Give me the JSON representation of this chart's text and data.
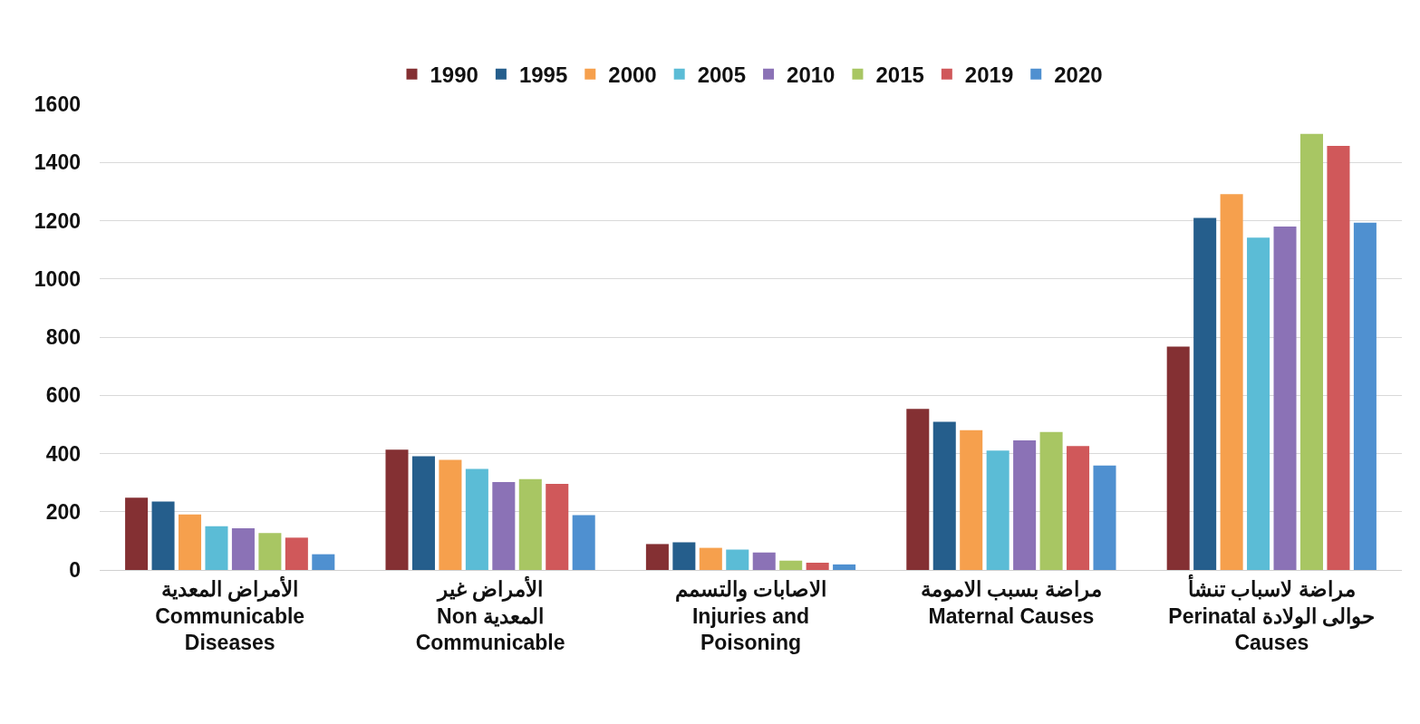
{
  "chart_data": {
    "type": "bar",
    "categories": [
      "الأمراض المعدية\nCommunicable\nDiseases",
      "الأمراض غير\nNon المعدية\nCommunicable",
      "الاصابات والتسمم\nInjuries and\nPoisoning",
      "مراضة بسبب الامومة\nMaternal Causes",
      "مراضة لاسباب تنشأ\nPerinatal حوالى الولادة\nCauses"
    ],
    "series": [
      {
        "name": "1990",
        "color": "#843033",
        "values": [
          248,
          413,
          89,
          553,
          767
        ]
      },
      {
        "name": "1995",
        "color": "#255e8c",
        "values": [
          235,
          391,
          95,
          509,
          1209
        ]
      },
      {
        "name": "2000",
        "color": "#f6a04d",
        "values": [
          191,
          378,
          76,
          480,
          1291
        ]
      },
      {
        "name": "2005",
        "color": "#5bbcd6",
        "values": [
          150,
          347,
          70,
          410,
          1142
        ]
      },
      {
        "name": "2010",
        "color": "#8b72b6",
        "values": [
          143,
          302,
          60,
          445,
          1180
        ]
      },
      {
        "name": "2015",
        "color": "#a8c663",
        "values": [
          127,
          312,
          32,
          474,
          1498
        ]
      },
      {
        "name": "2019",
        "color": "#d0585a",
        "values": [
          111,
          296,
          25,
          426,
          1457
        ]
      },
      {
        "name": "2020",
        "color": "#4f90d0",
        "values": [
          54,
          188,
          19,
          359,
          1193
        ]
      }
    ],
    "ylim": [
      0,
      1600
    ],
    "yticks": [
      0,
      200,
      400,
      600,
      800,
      1000,
      1200,
      1400,
      1600
    ],
    "grid": "y",
    "legend": "top"
  }
}
